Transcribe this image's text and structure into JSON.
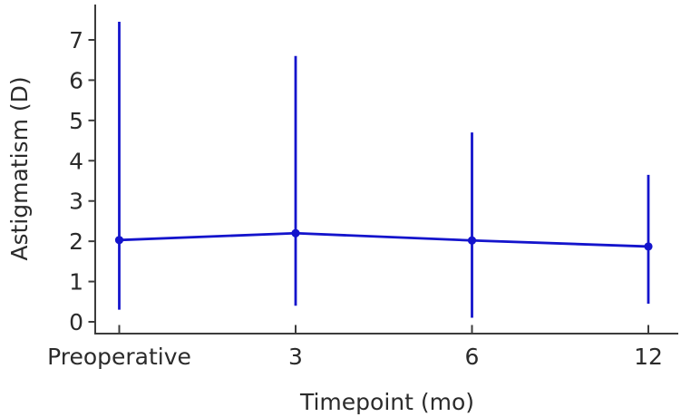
{
  "chart_data": {
    "type": "line",
    "title": "",
    "xlabel": "Timepoint (mo)",
    "ylabel": "Astigmatism (D)",
    "categories": [
      "Preoperative",
      "3",
      "6",
      "12"
    ],
    "series": [
      {
        "name": "Astigmatism",
        "values": [
          2.03,
          2.2,
          2.02,
          1.87
        ],
        "error_bar_top": [
          7.45,
          6.6,
          4.7,
          3.65
        ],
        "error_bar_bottom": [
          0.3,
          0.4,
          0.1,
          0.45
        ]
      }
    ],
    "yticks": [
      0,
      1,
      2,
      3,
      4,
      5,
      6,
      7
    ],
    "ylim": [
      -0.3,
      7.9
    ],
    "grid": false,
    "legend_position": "none",
    "marker": "circle",
    "colors": {
      "line": "#1414CC",
      "marker": "#1414CC",
      "axis": "#3C3C3C",
      "text": "#2B2B2B",
      "background": "#FFFFFF"
    }
  }
}
